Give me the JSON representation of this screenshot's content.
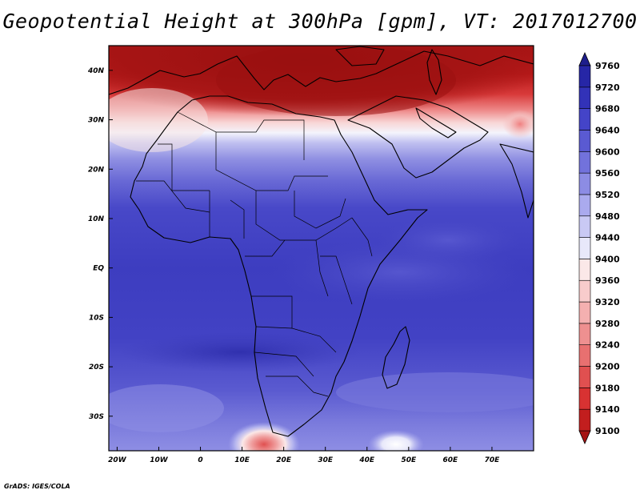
{
  "title": "Geopotential Height at 300hPa [gpm], VT: 2017012700",
  "footer": "GrADS: IGES/COLA",
  "map": {
    "projection": "latlon",
    "lon_range": [
      -22,
      80
    ],
    "lat_range": [
      -37,
      45
    ],
    "coastlines": true,
    "country_borders": true
  },
  "axes": {
    "x_ticks": [
      {
        "value": -20,
        "label": "20W"
      },
      {
        "value": -10,
        "label": "10W"
      },
      {
        "value": 0,
        "label": "0"
      },
      {
        "value": 10,
        "label": "10E"
      },
      {
        "value": 20,
        "label": "20E"
      },
      {
        "value": 30,
        "label": "30E"
      },
      {
        "value": 40,
        "label": "40E"
      },
      {
        "value": 50,
        "label": "50E"
      },
      {
        "value": 60,
        "label": "60E"
      },
      {
        "value": 70,
        "label": "70E"
      }
    ],
    "y_ticks": [
      {
        "value": 40,
        "label": "40N"
      },
      {
        "value": 30,
        "label": "30N"
      },
      {
        "value": 20,
        "label": "20N"
      },
      {
        "value": 10,
        "label": "10N"
      },
      {
        "value": 0,
        "label": "EQ"
      },
      {
        "value": -10,
        "label": "10S"
      },
      {
        "value": -20,
        "label": "20S"
      },
      {
        "value": -30,
        "label": "30S"
      }
    ]
  },
  "colorbar": {
    "levels": [
      9100,
      9140,
      9180,
      9200,
      9240,
      9280,
      9320,
      9360,
      9400,
      9440,
      9480,
      9520,
      9560,
      9600,
      9640,
      9680,
      9720,
      9760
    ],
    "level_labels": [
      "9100",
      "9140",
      "9180",
      "9200",
      "9240",
      "9280",
      "9320",
      "9360",
      "9400",
      "9440",
      "9480",
      "9520",
      "9560",
      "9600",
      "9640",
      "9680",
      "9720",
      "9760"
    ],
    "colors": [
      "#a51414",
      "#c21e1e",
      "#d83232",
      "#e05050",
      "#e87070",
      "#ee9090",
      "#f4b0b0",
      "#f8cccc",
      "#fbe8e8",
      "#e8e8fa",
      "#c9c9f4",
      "#aaaaee",
      "#8c8ce4",
      "#7272dc",
      "#5a5ad2",
      "#4444c8",
      "#3232b8",
      "#2626a6",
      "#1e1e8c"
    ]
  },
  "field_regions": [
    {
      "region": "north-mediterranean",
      "value": 9120
    },
    {
      "region": "sahara-band",
      "value": 9450
    },
    {
      "region": "central-africa",
      "value": 9690
    },
    {
      "region": "southern-africa",
      "value": 9640
    },
    {
      "region": "south-atlantic-ridge",
      "value": 9250
    }
  ]
}
